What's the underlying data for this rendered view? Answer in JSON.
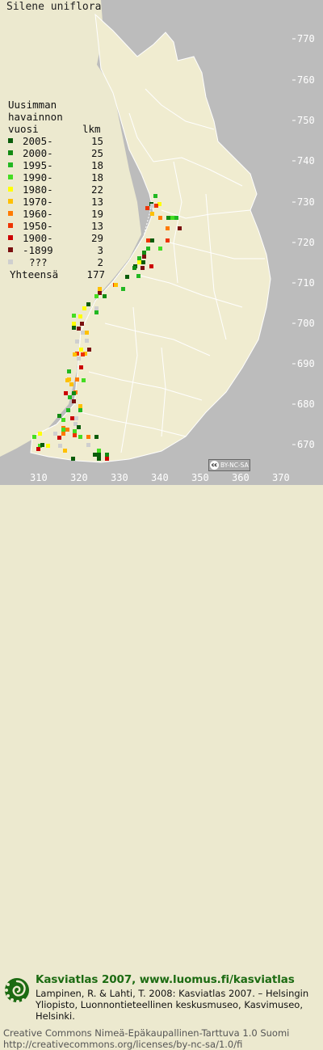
{
  "title": "Silene uniflora",
  "legend": {
    "heading": [
      "Uusimman",
      "havainnon",
      "vuosi"
    ],
    "count_heading": "lkm",
    "entries": [
      {
        "label": "2005-",
        "count": "15",
        "color": "#0a5c0a"
      },
      {
        "label": "2000-",
        "count": "25",
        "color": "#128a12"
      },
      {
        "label": "1995-",
        "count": "18",
        "color": "#22b822"
      },
      {
        "label": "1990-",
        "count": "18",
        "color": "#44dd22"
      },
      {
        "label": "1980-",
        "count": "22",
        "color": "#ffff00"
      },
      {
        "label": "1970-",
        "count": "13",
        "color": "#ffc000"
      },
      {
        "label": "1960-",
        "count": "19",
        "color": "#ff7a00"
      },
      {
        "label": "1950-",
        "count": "13",
        "color": "#ee3300"
      },
      {
        "label": "1900-",
        "count": "29",
        "color": "#cc0000"
      },
      {
        "label": "-1899",
        "count": "3",
        "color": "#7a1010"
      },
      {
        "label": "???",
        "count": "2",
        "color": "#cfcfcf"
      }
    ],
    "total_label": "Yhteensä",
    "total_count": "177"
  },
  "axes": {
    "y_ticks": [
      "770",
      "760",
      "750",
      "740",
      "730",
      "720",
      "710",
      "700",
      "690",
      "680",
      "670"
    ],
    "x_ticks": [
      "310",
      "320",
      "330",
      "340",
      "350",
      "360",
      "370"
    ]
  },
  "license_badge": "BY-NC-SA",
  "footer": {
    "title": "Kasviatlas 2007, www.luomus.fi/kasviatlas",
    "citation": "Lampinen, R. & Lahti, T. 2008: Kasviatlas 2007. – Helsingin Yliopisto, Luonnontieteellinen keskusmuseo, Kasvimuseo, Helsinki.",
    "license": "Creative Commons Nimeä-Epäkaupallinen-Tarttuva 1.0 Suomi http://creativecommons.org/licenses/by-nc-sa/1.0/fi"
  },
  "colors": {
    "sea": "#bcbcbc",
    "land": "#ece9cf",
    "borders": "#ffffff",
    "accent": "#1c6b12"
  }
}
